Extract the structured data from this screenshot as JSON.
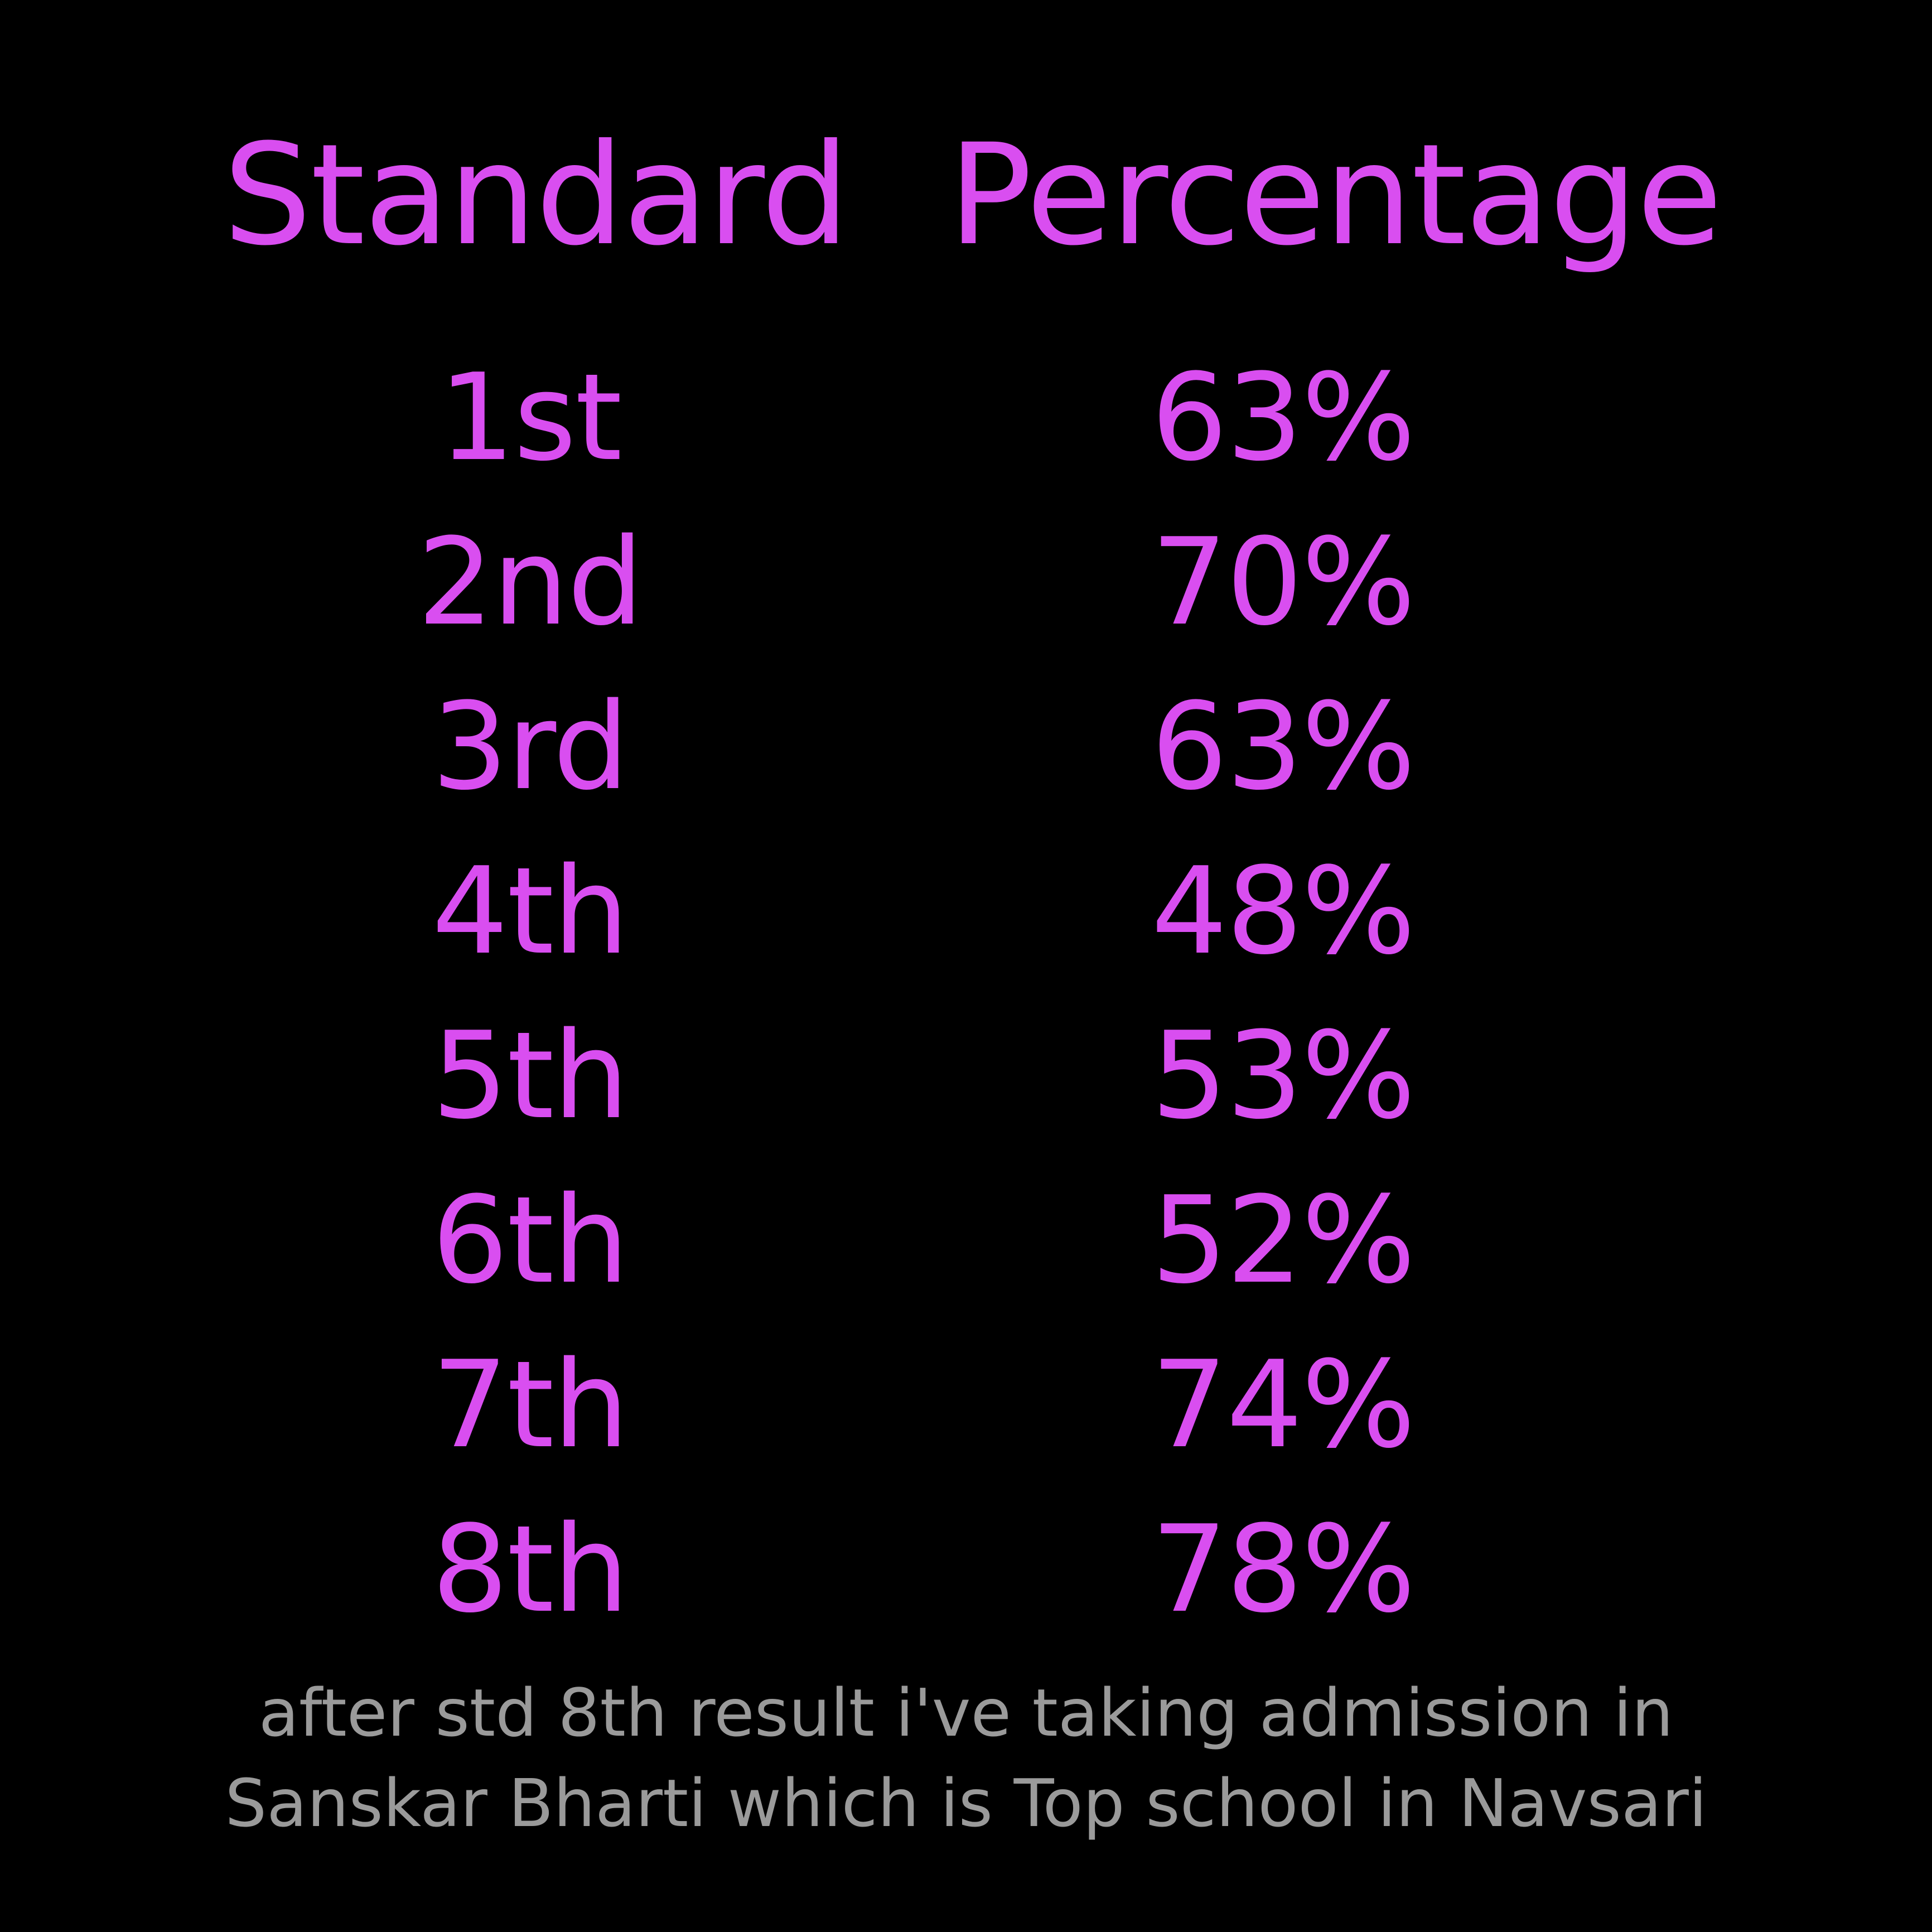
{
  "colors": {
    "background": "#000000",
    "accent": "#d94ef0",
    "note": "#9a9a9a"
  },
  "table": {
    "headers": [
      "Standard",
      "Percentage"
    ],
    "rows": [
      {
        "standard": "1st",
        "percentage": "63%"
      },
      {
        "standard": "2nd",
        "percentage": "70%"
      },
      {
        "standard": "3rd",
        "percentage": "63%"
      },
      {
        "standard": "4th",
        "percentage": "48%"
      },
      {
        "standard": "5th",
        "percentage": "53%"
      },
      {
        "standard": "6th",
        "percentage": "52%"
      },
      {
        "standard": "7th",
        "percentage": "74%"
      },
      {
        "standard": "8th",
        "percentage": "78%"
      }
    ]
  },
  "footnote": {
    "line1": "after std 8th result i've taking admission in",
    "line2": "Sanskar Bharti which is Top school in Navsari"
  }
}
